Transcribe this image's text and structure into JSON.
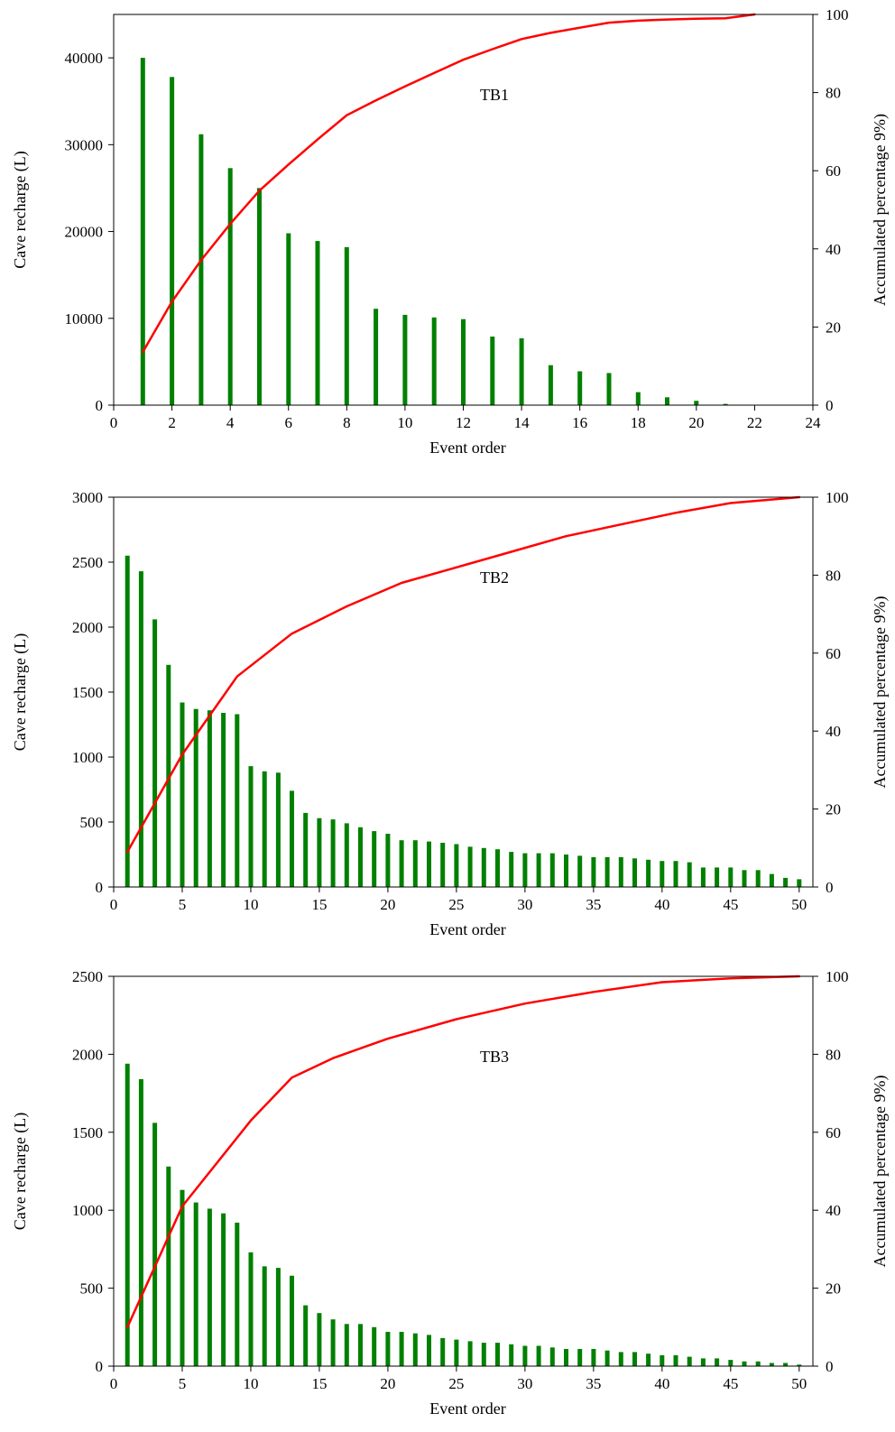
{
  "chart_data": [
    {
      "type": "bar",
      "panel_label": "TB1",
      "xlabel": "Event order",
      "ylabel": "Cave recharge (L)",
      "y2label": "Accumulated percentage 9%)",
      "xlim": [
        0,
        24
      ],
      "xticks": [
        0,
        2,
        4,
        6,
        8,
        10,
        12,
        14,
        16,
        18,
        20,
        22,
        24
      ],
      "ylim": [
        0,
        45000
      ],
      "yticks": [
        0,
        10000,
        20000,
        30000,
        40000
      ],
      "y2lim": [
        0,
        100
      ],
      "y2ticks": [
        0,
        20,
        40,
        60,
        80,
        100
      ],
      "bar_color": "#008000",
      "line_color": "#ff0000",
      "series": [
        {
          "kind": "bar",
          "axis": "left",
          "x": [
            1,
            2,
            3,
            4,
            5,
            6,
            7,
            8,
            9,
            10,
            11,
            12,
            13,
            14,
            15,
            16,
            17,
            18,
            19,
            20,
            21,
            22
          ],
          "values": [
            40000,
            37800,
            31200,
            27300,
            25000,
            19800,
            18900,
            18200,
            11100,
            10400,
            10100,
            9900,
            7900,
            7700,
            4600,
            3900,
            3700,
            1500,
            900,
            500,
            150,
            50
          ]
        },
        {
          "kind": "line",
          "axis": "right",
          "x": [
            1,
            2,
            3,
            4,
            5,
            6,
            7,
            8,
            9,
            10,
            11,
            12,
            13,
            14,
            15,
            16,
            17,
            18,
            19,
            20,
            21,
            22
          ],
          "values": [
            13.6,
            26.5,
            37.1,
            46.4,
            54.9,
            61.6,
            68.0,
            74.2,
            78.0,
            81.6,
            85.0,
            88.4,
            91.1,
            93.7,
            95.3,
            96.6,
            97.9,
            98.4,
            98.7,
            98.9,
            99.0,
            100
          ]
        }
      ]
    },
    {
      "type": "bar",
      "panel_label": "TB2",
      "xlabel": "Event order",
      "ylabel": "Cave recharge (L)",
      "y2label": "Accumulated percentage 9%)",
      "xlim": [
        0,
        51
      ],
      "xticks": [
        0,
        5,
        10,
        15,
        20,
        25,
        30,
        35,
        40,
        45,
        50
      ],
      "ylim": [
        0,
        3000
      ],
      "yticks": [
        0,
        500,
        1000,
        1500,
        2000,
        2500,
        3000
      ],
      "y2lim": [
        0,
        100
      ],
      "y2ticks": [
        0,
        20,
        40,
        60,
        80,
        100
      ],
      "bar_color": "#008000",
      "line_color": "#ff0000",
      "series": [
        {
          "kind": "bar",
          "axis": "left",
          "x": [
            1,
            2,
            3,
            4,
            5,
            6,
            7,
            8,
            9,
            10,
            11,
            12,
            13,
            14,
            15,
            16,
            17,
            18,
            19,
            20,
            21,
            22,
            23,
            24,
            25,
            26,
            27,
            28,
            29,
            30,
            31,
            32,
            33,
            34,
            35,
            36,
            37,
            38,
            39,
            40,
            41,
            42,
            43,
            44,
            45,
            46,
            47,
            48,
            49,
            50
          ],
          "values": [
            2550,
            2430,
            2060,
            1710,
            1420,
            1370,
            1360,
            1340,
            1330,
            930,
            890,
            880,
            740,
            570,
            530,
            520,
            490,
            460,
            430,
            410,
            360,
            360,
            350,
            340,
            330,
            310,
            300,
            290,
            270,
            260,
            260,
            260,
            250,
            240,
            230,
            230,
            230,
            220,
            210,
            200,
            200,
            190,
            150,
            150,
            150,
            130,
            130,
            100,
            70,
            60
          ]
        },
        {
          "kind": "line",
          "axis": "right",
          "x": [
            1,
            5,
            9,
            13,
            17,
            21,
            25,
            29,
            33,
            37,
            41,
            45,
            50
          ],
          "values": [
            9,
            34,
            54,
            65,
            72,
            78,
            82,
            86,
            90,
            93,
            96,
            98.5,
            100
          ]
        }
      ]
    },
    {
      "type": "bar",
      "panel_label": "TB3",
      "xlabel": "Event order",
      "ylabel": "Cave recharge (L)",
      "y2label": "Accumulated percentage 9%)",
      "xlim": [
        0,
        51
      ],
      "xticks": [
        0,
        5,
        10,
        15,
        20,
        25,
        30,
        35,
        40,
        45,
        50
      ],
      "ylim": [
        0,
        2500
      ],
      "yticks": [
        0,
        500,
        1000,
        1500,
        2000,
        2500
      ],
      "y2lim": [
        0,
        100
      ],
      "y2ticks": [
        0,
        20,
        40,
        60,
        80,
        100
      ],
      "bar_color": "#008000",
      "line_color": "#ff0000",
      "series": [
        {
          "kind": "bar",
          "axis": "left",
          "x": [
            1,
            2,
            3,
            4,
            5,
            6,
            7,
            8,
            9,
            10,
            11,
            12,
            13,
            14,
            15,
            16,
            17,
            18,
            19,
            20,
            21,
            22,
            23,
            24,
            25,
            26,
            27,
            28,
            29,
            30,
            31,
            32,
            33,
            34,
            35,
            36,
            37,
            38,
            39,
            40,
            41,
            42,
            43,
            44,
            45,
            46,
            47,
            48,
            49,
            50
          ],
          "values": [
            1940,
            1840,
            1560,
            1280,
            1130,
            1050,
            1010,
            980,
            920,
            730,
            640,
            630,
            580,
            390,
            340,
            300,
            270,
            270,
            250,
            220,
            220,
            210,
            200,
            180,
            170,
            160,
            150,
            150,
            140,
            130,
            130,
            120,
            110,
            110,
            110,
            100,
            90,
            90,
            80,
            70,
            70,
            60,
            50,
            50,
            40,
            30,
            30,
            20,
            20,
            10
          ]
        },
        {
          "kind": "line",
          "axis": "right",
          "x": [
            1,
            5,
            10,
            13,
            16,
            20,
            25,
            30,
            35,
            40,
            45,
            50
          ],
          "values": [
            10,
            41,
            63,
            74,
            79,
            84,
            89,
            93,
            96,
            98.5,
            99.5,
            100
          ]
        }
      ]
    }
  ]
}
